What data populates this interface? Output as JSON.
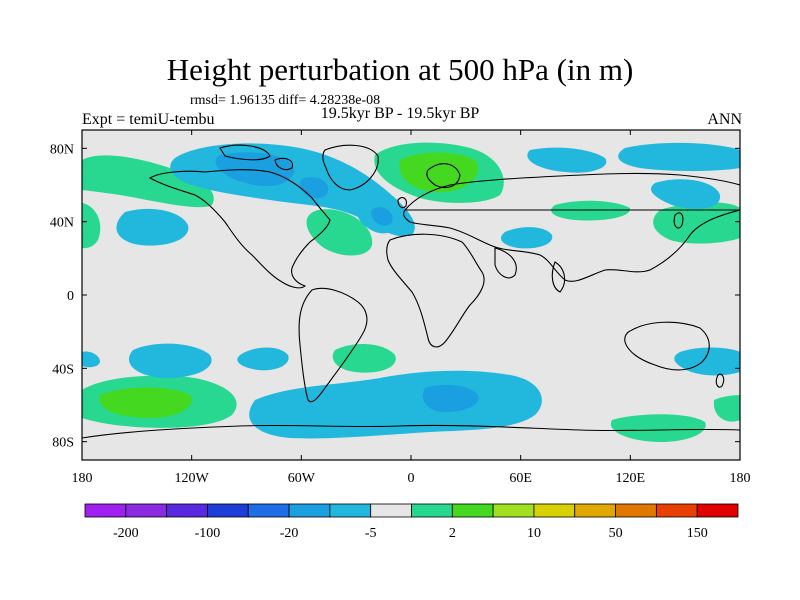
{
  "title": "Height perturbation at 500 hPa (in m)",
  "stats": "rmsd= 1.96135 diff= 4.28238e-08",
  "left_label": "Expt = temiU-tembu",
  "center_label": "19.5kyr BP - 19.5kyr BP",
  "right_label": "ANN",
  "axes": {
    "lat_ticks": [
      {
        "v": 80,
        "t": "80N"
      },
      {
        "v": 40,
        "t": "40N"
      },
      {
        "v": 0,
        "t": "0"
      },
      {
        "v": -40,
        "t": "40S"
      },
      {
        "v": -80,
        "t": "80S"
      }
    ],
    "lon_ticks": [
      {
        "v": -180,
        "t": "180"
      },
      {
        "v": -120,
        "t": "120W"
      },
      {
        "v": -60,
        "t": "60W"
      },
      {
        "v": 0,
        "t": "0"
      },
      {
        "v": 60,
        "t": "60E"
      },
      {
        "v": 120,
        "t": "120E"
      },
      {
        "v": 180,
        "t": "180"
      }
    ]
  },
  "colorbar": {
    "colors": [
      "#a020f0",
      "#8a2be2",
      "#5a28e0",
      "#1e3cd8",
      "#1e6ee6",
      "#1a9fe0",
      "#22b8de",
      "#e6e6e6",
      "#28d890",
      "#44d820",
      "#a0e020",
      "#d8d000",
      "#e0a800",
      "#e07800",
      "#e84000",
      "#e00000"
    ],
    "labels": [
      {
        "i": 1,
        "t": "-200"
      },
      {
        "i": 3,
        "t": "-100"
      },
      {
        "i": 5,
        "t": "-20"
      },
      {
        "i": 7,
        "t": "-5"
      },
      {
        "i": 9,
        "t": "2"
      },
      {
        "i": 11,
        "t": "10"
      },
      {
        "i": 13,
        "t": "50"
      },
      {
        "i": 15,
        "t": "150"
      }
    ]
  },
  "colors": {
    "background": "#e6e6e6",
    "pos1": "#28d890",
    "pos2": "#44d820",
    "neg1": "#22b8de",
    "neg2": "#1a9fe0"
  }
}
